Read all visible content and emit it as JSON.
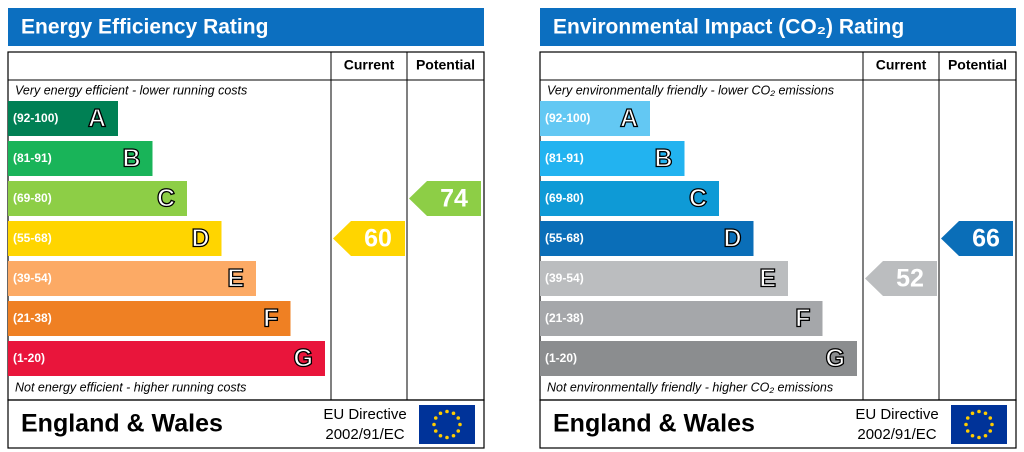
{
  "panels": [
    {
      "title": "Energy Efficiency Rating",
      "headers": [
        "Current",
        "Potential"
      ],
      "top_note": "Very energy efficient - lower running costs",
      "bottom_note": "Not energy efficient - higher running costs",
      "bands": [
        {
          "range": "(92-100)",
          "letter": "A",
          "color": "#008054"
        },
        {
          "range": "(81-91)",
          "letter": "B",
          "color": "#19b459"
        },
        {
          "range": "(69-80)",
          "letter": "C",
          "color": "#8dce46"
        },
        {
          "range": "(55-68)",
          "letter": "D",
          "color": "#ffd500"
        },
        {
          "range": "(39-54)",
          "letter": "E",
          "color": "#fcaa65"
        },
        {
          "range": "(21-38)",
          "letter": "F",
          "color": "#ef8023"
        },
        {
          "range": "(1-20)",
          "letter": "G",
          "color": "#e9153b"
        }
      ],
      "current": 60,
      "potential": 74,
      "region": "England & Wales",
      "directive": [
        "EU Directive",
        "2002/91/EC"
      ]
    },
    {
      "title": "Environmental Impact (CO₂) Rating",
      "headers": [
        "Current",
        "Potential"
      ],
      "top_note": "Very environmentally friendly - lower CO₂ emissions",
      "bottom_note": "Not environmentally friendly - higher CO₂ emissions",
      "bands": [
        {
          "range": "(92-100)",
          "letter": "A",
          "color": "#63c8f3"
        },
        {
          "range": "(81-91)",
          "letter": "B",
          "color": "#22b3f0"
        },
        {
          "range": "(69-80)",
          "letter": "C",
          "color": "#0e9ad6"
        },
        {
          "range": "(55-68)",
          "letter": "D",
          "color": "#0a6eb8"
        },
        {
          "range": "(39-54)",
          "letter": "E",
          "color": "#bbbdbf"
        },
        {
          "range": "(21-38)",
          "letter": "F",
          "color": "#a5a7aa"
        },
        {
          "range": "(1-20)",
          "letter": "G",
          "color": "#8b8d8f"
        }
      ],
      "current": 52,
      "potential": 66,
      "region": "England & Wales",
      "directive": [
        "EU Directive",
        "2002/91/EC"
      ]
    }
  ]
}
